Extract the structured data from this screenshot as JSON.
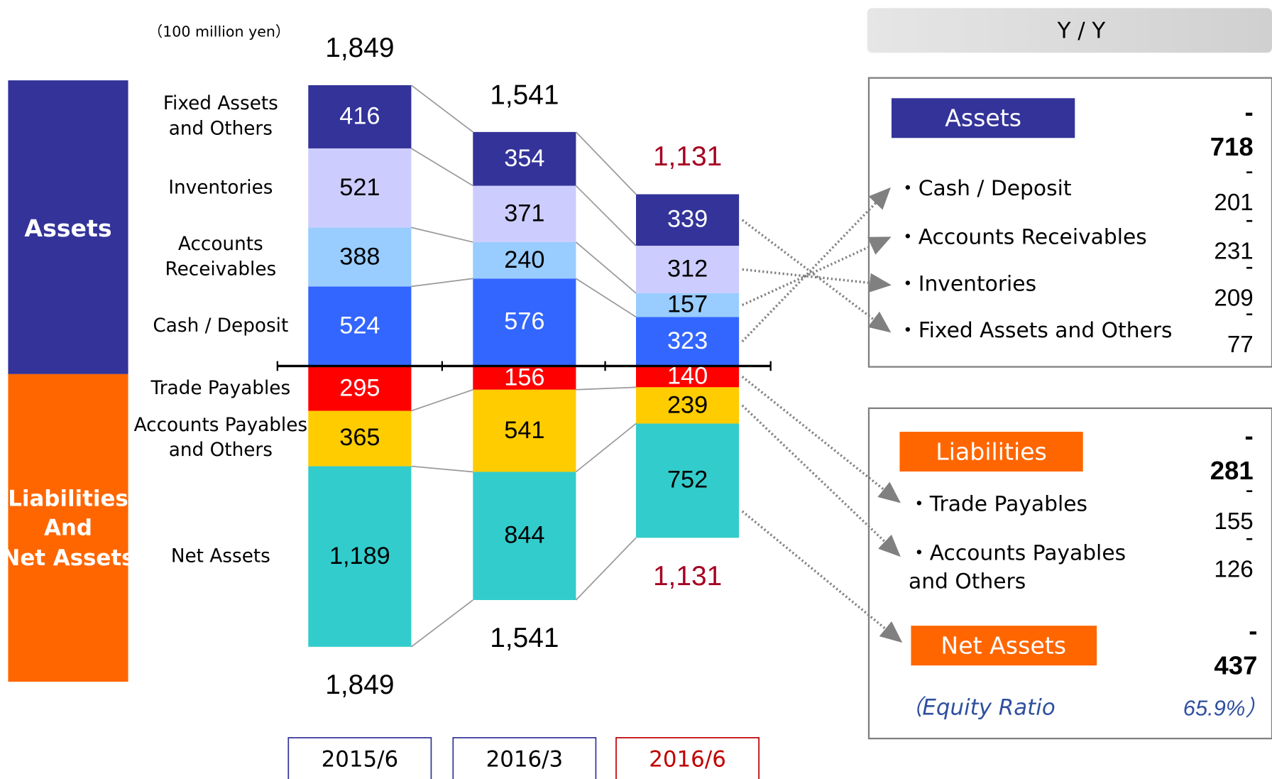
{
  "chart_data": {
    "type": "balance-sheet",
    "unit": "（100 million yen）",
    "categories": [
      "2015/6",
      "2016/3",
      "2016/6"
    ],
    "category_colors": [
      "#333399",
      "#333399",
      "#c00000"
    ],
    "sections": [
      {
        "name": "Assets",
        "color": "#333399"
      },
      {
        "name": "Liabilities\nAnd\nNet Assets",
        "color": "#ff6600"
      }
    ],
    "assets": [
      {
        "name": "Cash / Deposit",
        "color": "#3366ff",
        "text_color": "#ffffff",
        "values": [
          524,
          576,
          323
        ]
      },
      {
        "name": "Accounts\nReceivables",
        "color": "#99ccff",
        "text_color": "#000000",
        "values": [
          388,
          240,
          157
        ]
      },
      {
        "name": "Inventories",
        "color": "#ccccff",
        "text_color": "#000000",
        "values": [
          521,
          371,
          312
        ]
      },
      {
        "name": "Fixed Assets\nand Others",
        "color": "#333399",
        "text_color": "#ffffff",
        "values": [
          416,
          354,
          339
        ]
      }
    ],
    "liabilities": [
      {
        "name": "Trade Payables",
        "color": "#ff0000",
        "text_color": "#ffffff",
        "values": [
          295,
          156,
          140
        ]
      },
      {
        "name": "Accounts Payables\nand Others",
        "color": "#ffcc00",
        "text_color": "#000000",
        "values": [
          365,
          541,
          239
        ]
      },
      {
        "name": "Net Assets",
        "color": "#33cccc",
        "text_color": "#000000",
        "values": [
          1189,
          844,
          752
        ],
        "value_labels": [
          "1,189",
          "844",
          "752"
        ]
      }
    ],
    "totals": {
      "values": [
        1849,
        1541,
        1131
      ],
      "value_labels": [
        "1,849",
        "1,541",
        "1,131"
      ],
      "colors": [
        "#000000",
        "#000000",
        "#a50021"
      ]
    }
  },
  "yoy": {
    "title": "Y / Y",
    "assets": {
      "label": "Assets",
      "change": "- 718",
      "items": [
        {
          "name": "・Cash / Deposit",
          "change": "-  201"
        },
        {
          "name": "・Accounts Receivables",
          "change": "- 231"
        },
        {
          "name": "・Inventories",
          "change": "- 209"
        },
        {
          "name": "・Fixed Assets and Others",
          "change": "-   77"
        }
      ]
    },
    "liabilities": {
      "label": "Liabilities",
      "change": "- 281",
      "items": [
        {
          "name": "・Trade Payables",
          "change": "-  155"
        },
        {
          "name": "・Accounts Payables\n  and Others",
          "change": "-  126"
        }
      ]
    },
    "net_assets": {
      "label": "Net Assets",
      "change": "- 437"
    },
    "equity_ratio": {
      "label": "（Equity Ratio",
      "value": "65.9%）"
    }
  }
}
